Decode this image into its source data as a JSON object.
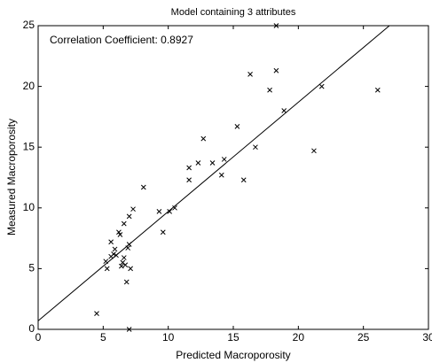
{
  "chart_data": {
    "type": "scatter",
    "title": "Model containing 3 attributes",
    "xlabel": "Predicted Macroporosity",
    "ylabel": "Measured Macroporosity",
    "annotation": "Correlation Coefficient: 0.8927",
    "xlim": [
      0,
      30
    ],
    "ylim": [
      0,
      25
    ],
    "xticks": [
      0,
      5,
      10,
      15,
      20,
      25,
      30
    ],
    "yticks": [
      0,
      5,
      10,
      15,
      20,
      25
    ],
    "grid": false,
    "color": "#000000",
    "marker": "x",
    "series": [
      {
        "x": [
          4.5,
          7.0,
          6.8,
          5.3,
          5.2,
          5.6,
          5.8,
          6.0,
          5.6,
          5.9,
          6.3,
          6.2,
          6.6,
          7.0,
          7.3,
          6.5,
          6.6,
          6.4,
          6.9,
          7.0,
          7.1,
          6.7,
          8.1,
          9.3,
          9.6,
          10.1,
          10.5,
          11.6,
          11.6,
          12.3,
          12.7,
          13.4,
          14.1,
          14.3,
          15.3,
          15.8,
          16.3,
          16.7,
          17.8,
          18.3,
          18.3,
          18.9,
          21.2,
          21.8,
          26.1
        ],
        "values": [
          1.3,
          0.0,
          3.9,
          5.0,
          5.6,
          6.0,
          6.2,
          6.1,
          7.2,
          6.6,
          7.8,
          8.0,
          8.7,
          9.3,
          9.9,
          5.5,
          5.9,
          5.2,
          6.7,
          7.0,
          5.0,
          5.3,
          11.7,
          9.7,
          8.0,
          9.7,
          10.0,
          12.3,
          13.3,
          13.7,
          15.7,
          13.7,
          12.7,
          14.0,
          16.7,
          12.3,
          21.0,
          15.0,
          19.7,
          21.3,
          25.0,
          18.0,
          14.7,
          20.0,
          19.7
        ]
      }
    ],
    "fit_line": {
      "x": [
        0,
        27.0
      ],
      "values": [
        0.7,
        25
      ]
    }
  }
}
